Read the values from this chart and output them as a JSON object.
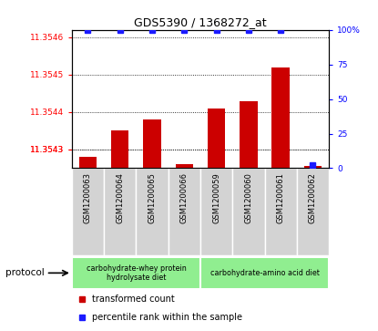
{
  "title": "GDS5390 / 1368272_at",
  "samples": [
    "GSM1200063",
    "GSM1200064",
    "GSM1200065",
    "GSM1200066",
    "GSM1200059",
    "GSM1200060",
    "GSM1200061",
    "GSM1200062"
  ],
  "red_values": [
    11.35428,
    11.35435,
    11.35438,
    11.35426,
    11.35441,
    11.35443,
    11.35452,
    11.354255
  ],
  "blue_values": [
    100,
    100,
    100,
    100,
    100,
    100,
    100,
    2
  ],
  "ylim_left": [
    11.35425,
    11.35462
  ],
  "ylim_right": [
    0,
    100
  ],
  "yticks_left": [
    11.3543,
    11.3543,
    11.3544,
    11.3545,
    11.3546
  ],
  "ytick_labels_left": [
    "11.3543",
    "11.3543",
    "11.3544",
    "11.3545",
    "11.3546"
  ],
  "yticks_right": [
    0,
    25,
    50,
    75,
    100
  ],
  "ytick_labels_right": [
    "0",
    "25",
    "50",
    "75",
    "100%"
  ],
  "protocol_groups": [
    {
      "label": "carbohydrate-whey protein\nhydrolysate diet",
      "color": "#90ee90",
      "start": 0,
      "end": 4
    },
    {
      "label": "carbohydrate-amino acid diet",
      "color": "#90ee90",
      "start": 4,
      "end": 8
    }
  ],
  "protocol_label": "protocol",
  "bar_color_red": "#cc0000",
  "bar_color_blue": "#1a1aff",
  "background_color": "#ffffff",
  "sample_label_bg": "#d3d3d3",
  "legend_red": "transformed count",
  "legend_blue": "percentile rank within the sample"
}
